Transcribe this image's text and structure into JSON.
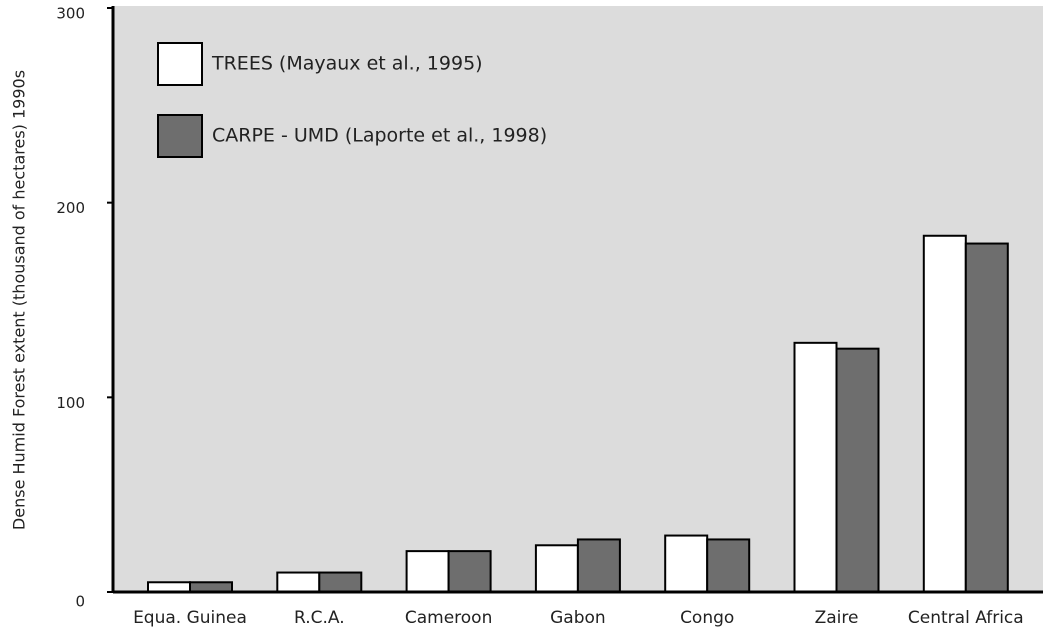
{
  "chart_data": {
    "type": "bar",
    "y_label": "Dense Humid Forest extent (thousand of hectares) 1990s",
    "categories": [
      "Equa. Guinea",
      "R.C.A.",
      "Cameroon",
      "Gabon",
      "Congo",
      "Zaire",
      "Central Africa"
    ],
    "series": [
      {
        "name": "TREES (Mayaux et al., 1995)",
        "color": "#ffffff",
        "values": [
          5,
          10,
          21,
          24,
          29,
          128,
          183
        ]
      },
      {
        "name": "CARPE - UMD (Laporte et al., 1998)",
        "color": "#6e6e6e",
        "values": [
          5,
          10,
          21,
          27,
          27,
          125,
          179
        ]
      }
    ],
    "ylim": [
      0,
      300
    ],
    "yticks": [
      0,
      100,
      200,
      300
    ],
    "grid": false,
    "legend": "top-left"
  }
}
